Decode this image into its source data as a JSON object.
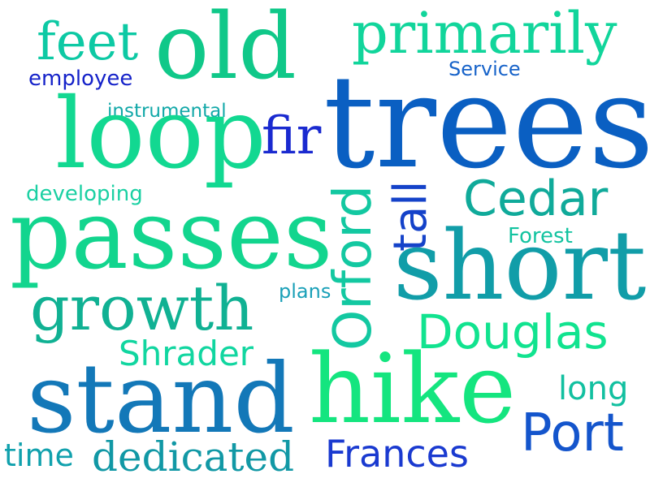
{
  "words": [
    {
      "text": "trees",
      "color": "#0a5fc2"
    },
    {
      "text": "old",
      "color": "#10c889"
    },
    {
      "text": "primarily",
      "color": "#11d59b"
    },
    {
      "text": "feet",
      "color": "#0dc9a4"
    },
    {
      "text": "Service",
      "color": "#1763c9"
    },
    {
      "text": "employee",
      "color": "#1522c9"
    },
    {
      "text": "instrumental",
      "color": "#12a8a8"
    },
    {
      "text": "loop",
      "color": "#12d891"
    },
    {
      "text": "fir",
      "color": "#1a2ad0"
    },
    {
      "text": "tall",
      "color": "#1442c9"
    },
    {
      "text": "developing",
      "color": "#1bd0a3"
    },
    {
      "text": "Cedar",
      "color": "#10aa9a"
    },
    {
      "text": "Forest",
      "color": "#13c3a0"
    },
    {
      "text": "passes",
      "color": "#12d58e"
    },
    {
      "text": "Orford",
      "color": "#13c8a1"
    },
    {
      "text": "short",
      "color": "#119da8"
    },
    {
      "text": "plans",
      "color": "#1aa0b8"
    },
    {
      "text": "growth",
      "color": "#10b193"
    },
    {
      "text": "Douglas",
      "color": "#11e38f"
    },
    {
      "text": "Shrader",
      "color": "#11d6a0"
    },
    {
      "text": "stand",
      "color": "#1378b8"
    },
    {
      "text": "hike",
      "color": "#14e57f"
    },
    {
      "text": "long",
      "color": "#12c0a0"
    },
    {
      "text": "Port",
      "color": "#1455cc"
    },
    {
      "text": "time",
      "color": "#11a1ad"
    },
    {
      "text": "dedicated",
      "color": "#1198a5"
    },
    {
      "text": "Frances",
      "color": "#1a3ad0"
    }
  ]
}
